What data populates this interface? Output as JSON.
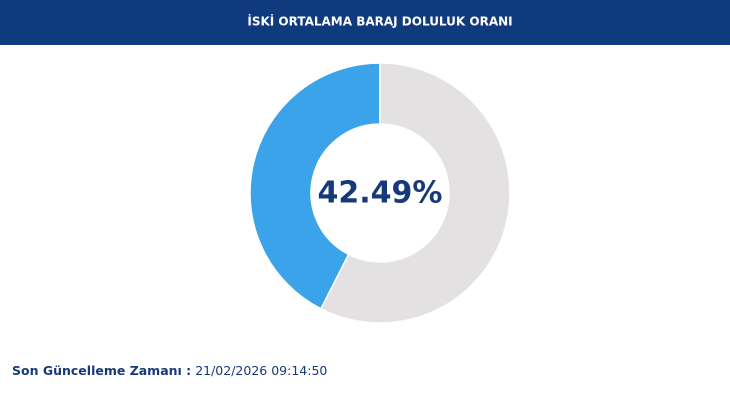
{
  "chart_data": {
    "type": "donut",
    "title": "İSKİ ORTALAMA BARAJ DOLULUK ORANI",
    "values": [
      42.49,
      57.51
    ],
    "value_labels": [
      "42.49%",
      null
    ],
    "colors": [
      "#3ba3ea",
      "#e3e1e1"
    ]
  },
  "footer": {
    "label": "Son Güncelleme Zamanı :",
    "time": "21/02/2026 09:14:50"
  }
}
